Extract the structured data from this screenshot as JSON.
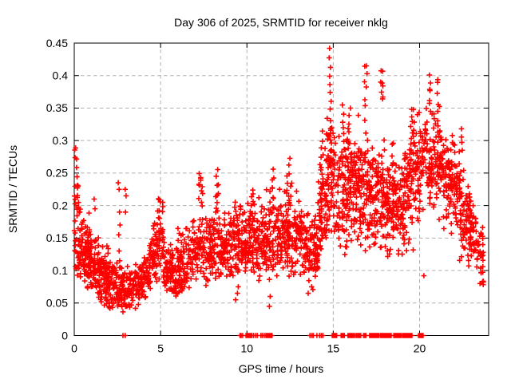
{
  "window": {
    "title": "Day 306 of 2025, SRMTID for receiver nklg"
  },
  "chart_data": {
    "type": "scatter",
    "title": "Day 306 of 2025, SRMTID for receiver nklg",
    "xlabel": "GPS time / hours",
    "ylabel": "SRMTID / TECUs",
    "xlim": [
      0,
      24
    ],
    "ylim": [
      0,
      0.45
    ],
    "xticks": [
      0,
      5,
      10,
      15,
      20
    ],
    "xtick_labels": [
      "0",
      "5",
      "10",
      "15",
      "20"
    ],
    "yticks": [
      0,
      0.05,
      0.1,
      0.15,
      0.2,
      0.25,
      0.3,
      0.35,
      0.4,
      0.45
    ],
    "ytick_labels": [
      "0",
      "0.05",
      "0.1",
      "0.15",
      "0.2",
      "0.25",
      "0.3",
      "0.35",
      "0.4",
      "0.45"
    ],
    "grid": "dashed-at-major-ticks",
    "legend": "none",
    "marker": "plus",
    "marker_color": "#ff0000",
    "grid_color": "#b0b0b0",
    "axis_color": "#000000",
    "background": "#ffffff",
    "seed": 2025306,
    "bands_schema": [
      "t_start",
      "t_end",
      "count",
      "center_start",
      "center_end",
      "spread",
      "y_min",
      "y_max"
    ],
    "bands": [
      [
        0.0,
        0.3,
        40,
        0.16,
        0.14,
        0.05,
        0.09,
        0.29
      ],
      [
        0.3,
        1.0,
        110,
        0.13,
        0.115,
        0.028,
        0.07,
        0.21
      ],
      [
        1.0,
        2.0,
        130,
        0.105,
        0.085,
        0.024,
        0.045,
        0.175
      ],
      [
        2.0,
        3.1,
        115,
        0.08,
        0.068,
        0.018,
        0.032,
        0.125
      ],
      [
        3.1,
        4.3,
        120,
        0.072,
        0.09,
        0.018,
        0.04,
        0.14
      ],
      [
        4.3,
        5.15,
        90,
        0.11,
        0.155,
        0.028,
        0.07,
        0.215
      ],
      [
        5.15,
        5.9,
        85,
        0.115,
        0.085,
        0.022,
        0.055,
        0.165
      ],
      [
        5.9,
        6.9,
        100,
        0.1,
        0.125,
        0.026,
        0.06,
        0.19
      ],
      [
        6.9,
        7.9,
        100,
        0.13,
        0.135,
        0.028,
        0.075,
        0.2
      ],
      [
        7.9,
        9.0,
        110,
        0.135,
        0.14,
        0.028,
        0.08,
        0.215
      ],
      [
        9.0,
        10.0,
        110,
        0.14,
        0.145,
        0.028,
        0.07,
        0.215
      ],
      [
        10.0,
        11.0,
        110,
        0.145,
        0.148,
        0.03,
        0.07,
        0.22
      ],
      [
        11.0,
        12.2,
        125,
        0.15,
        0.152,
        0.031,
        0.085,
        0.23
      ],
      [
        12.2,
        13.3,
        125,
        0.155,
        0.15,
        0.033,
        0.09,
        0.24
      ],
      [
        13.3,
        14.1,
        100,
        0.14,
        0.13,
        0.028,
        0.065,
        0.2
      ],
      [
        14.1,
        14.6,
        65,
        0.17,
        0.21,
        0.042,
        0.1,
        0.3
      ],
      [
        14.6,
        15.1,
        75,
        0.24,
        0.25,
        0.048,
        0.14,
        0.38
      ],
      [
        15.1,
        16.1,
        125,
        0.225,
        0.22,
        0.048,
        0.12,
        0.355
      ],
      [
        16.1,
        17.1,
        125,
        0.23,
        0.22,
        0.045,
        0.13,
        0.34
      ],
      [
        17.1,
        18.1,
        125,
        0.215,
        0.205,
        0.043,
        0.12,
        0.33
      ],
      [
        18.1,
        19.1,
        125,
        0.195,
        0.195,
        0.038,
        0.12,
        0.3
      ],
      [
        19.1,
        20.0,
        115,
        0.22,
        0.24,
        0.048,
        0.13,
        0.35
      ],
      [
        20.0,
        21.3,
        140,
        0.27,
        0.265,
        0.042,
        0.17,
        0.4
      ],
      [
        21.3,
        22.3,
        115,
        0.25,
        0.23,
        0.038,
        0.15,
        0.33
      ],
      [
        22.3,
        23.0,
        90,
        0.2,
        0.165,
        0.034,
        0.105,
        0.3
      ],
      [
        23.0,
        23.7,
        60,
        0.16,
        0.115,
        0.027,
        0.075,
        0.21
      ]
    ],
    "spike_columns_schema": [
      "t_center",
      "t_jitter",
      "count",
      "y_low",
      "y_high"
    ],
    "spike_columns": [
      [
        0.12,
        0.07,
        9,
        0.2,
        0.29
      ],
      [
        4.9,
        0.12,
        8,
        0.15,
        0.215
      ],
      [
        7.35,
        0.14,
        12,
        0.205,
        0.25
      ],
      [
        8.25,
        0.1,
        10,
        0.19,
        0.25
      ],
      [
        9.3,
        0.1,
        8,
        0.15,
        0.21
      ],
      [
        10.35,
        0.1,
        8,
        0.17,
        0.225
      ],
      [
        11.45,
        0.12,
        10,
        0.19,
        0.25
      ],
      [
        12.4,
        0.1,
        8,
        0.21,
        0.27
      ],
      [
        14.35,
        0.08,
        8,
        0.24,
        0.31
      ],
      [
        14.82,
        0.06,
        11,
        0.3,
        0.445
      ],
      [
        15.55,
        0.06,
        6,
        0.3,
        0.355
      ],
      [
        15.95,
        0.05,
        5,
        0.3,
        0.345
      ],
      [
        16.9,
        0.1,
        7,
        0.355,
        0.42
      ],
      [
        17.8,
        0.08,
        8,
        0.36,
        0.41
      ],
      [
        18.45,
        0.06,
        5,
        0.26,
        0.3
      ],
      [
        19.6,
        0.1,
        10,
        0.28,
        0.35
      ],
      [
        20.6,
        0.06,
        6,
        0.355,
        0.4
      ],
      [
        21.05,
        0.05,
        5,
        0.35,
        0.395
      ],
      [
        22.45,
        0.05,
        4,
        0.29,
        0.315
      ]
    ],
    "extra_points_schema": [
      "t_hours",
      "srmtid_tecus"
    ],
    "extra_points": [
      [
        1.15,
        0.21
      ],
      [
        1.2,
        0.195
      ],
      [
        2.55,
        0.235
      ],
      [
        2.6,
        0.225
      ],
      [
        2.62,
        0.19
      ],
      [
        2.65,
        0.17
      ],
      [
        2.58,
        0.155
      ],
      [
        2.6,
        0.13
      ],
      [
        2.63,
        0.115
      ],
      [
        2.95,
        0.225
      ],
      [
        3.0,
        0.215
      ],
      [
        2.97,
        0.19
      ],
      [
        9.35,
        0.055
      ],
      [
        9.45,
        0.065
      ],
      [
        9.5,
        0.075
      ],
      [
        11.3,
        0.045
      ],
      [
        11.35,
        0.06
      ],
      [
        13.55,
        0.065
      ],
      [
        13.75,
        0.075
      ],
      [
        20.25,
        0.092
      ],
      [
        23.5,
        0.08
      ]
    ],
    "zero_marker_clusters_schema": [
      "t_start",
      "t_end",
      "count"
    ],
    "zero_marker_clusters": [
      [
        2.82,
        2.95,
        2
      ],
      [
        9.6,
        9.75,
        3
      ],
      [
        9.95,
        10.3,
        8
      ],
      [
        10.4,
        10.6,
        3
      ],
      [
        10.8,
        11.0,
        3
      ],
      [
        11.1,
        11.45,
        8
      ],
      [
        13.65,
        13.85,
        3
      ],
      [
        14.05,
        14.2,
        2
      ],
      [
        14.3,
        14.4,
        2
      ],
      [
        14.95,
        15.2,
        6
      ],
      [
        15.45,
        15.65,
        4
      ],
      [
        15.85,
        16.05,
        4
      ],
      [
        16.1,
        16.25,
        3
      ],
      [
        16.35,
        16.6,
        5
      ],
      [
        16.75,
        16.9,
        3
      ],
      [
        17.1,
        17.45,
        9
      ],
      [
        17.5,
        17.65,
        4
      ],
      [
        17.75,
        18.05,
        8
      ],
      [
        18.1,
        18.35,
        7
      ],
      [
        18.5,
        18.7,
        5
      ],
      [
        18.75,
        18.95,
        5
      ],
      [
        19.05,
        19.3,
        7
      ],
      [
        19.35,
        19.55,
        6
      ],
      [
        19.95,
        20.2,
        5
      ]
    ]
  }
}
